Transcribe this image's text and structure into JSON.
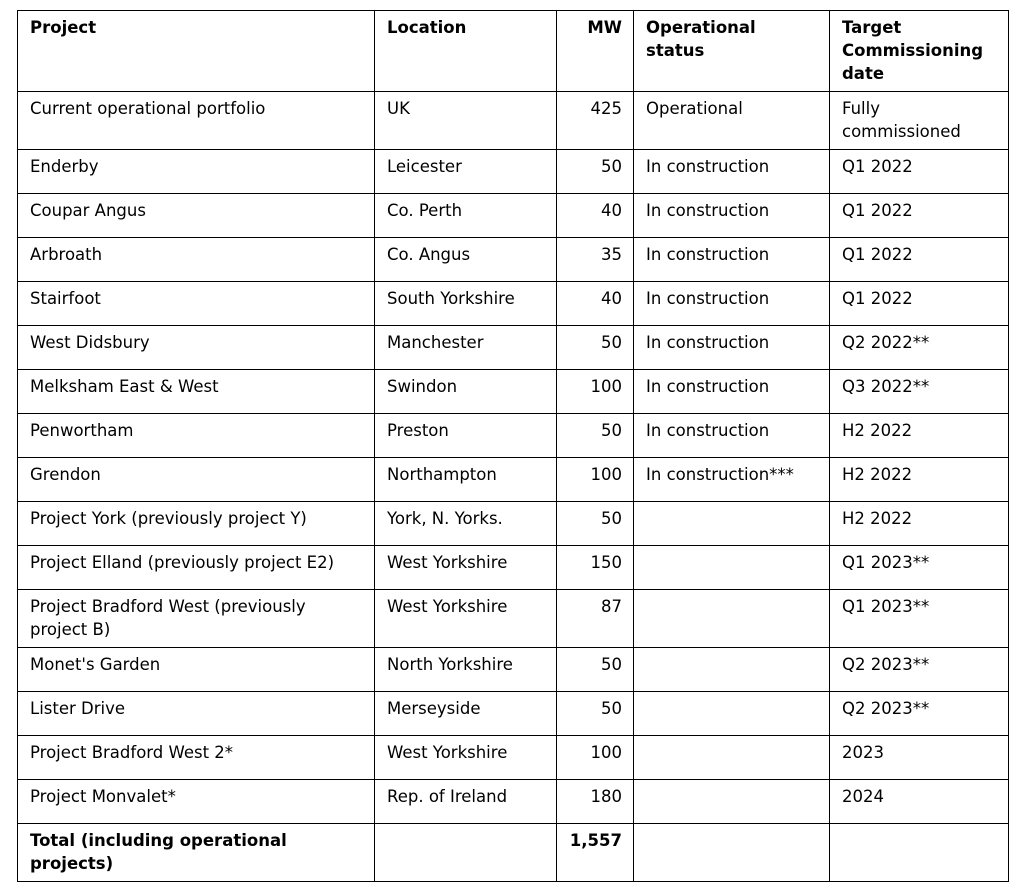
{
  "table": {
    "headers": {
      "project": "Project",
      "location": "Location",
      "mw": "MW",
      "status": "Operational status",
      "target": "Target Commissioning date"
    },
    "rows": [
      {
        "project": "Current operational portfolio",
        "location": "UK",
        "mw": "425",
        "status": "Operational",
        "target": "Fully commissioned"
      },
      {
        "project": "Enderby",
        "location": "Leicester",
        "mw": "50",
        "status": "In construction",
        "target": "Q1 2022"
      },
      {
        "project": "Coupar Angus",
        "location": "Co. Perth",
        "mw": "40",
        "status": "In construction",
        "target": "Q1 2022"
      },
      {
        "project": "Arbroath",
        "location": "Co. Angus",
        "mw": "35",
        "status": "In construction",
        "target": "Q1 2022"
      },
      {
        "project": "Stairfoot",
        "location": "South Yorkshire",
        "mw": "40",
        "status": "In construction",
        "target": "Q1 2022"
      },
      {
        "project": "West Didsbury",
        "location": "Manchester",
        "mw": "50",
        "status": "In construction",
        "target": "Q2 2022**"
      },
      {
        "project": "Melksham East & West",
        "location": "Swindon",
        "mw": "100",
        "status": "In construction",
        "target": "Q3 2022**"
      },
      {
        "project": "Penwortham",
        "location": "Preston",
        "mw": "50",
        "status": "In construction",
        "target": "H2 2022"
      },
      {
        "project": "Grendon",
        "location": "Northampton",
        "mw": "100",
        "status": "In construction***",
        "target": "H2 2022"
      },
      {
        "project": "Project York (previously project Y)",
        "location": "York, N. Yorks.",
        "mw": "50",
        "status": "",
        "target": "H2 2022"
      },
      {
        "project": "Project Elland (previously project E2)",
        "location": "West Yorkshire",
        "mw": "150",
        "status": "",
        "target": "Q1 2023**"
      },
      {
        "project": "Project Bradford West (previously project B)",
        "location": "West Yorkshire",
        "mw": "87",
        "status": "",
        "target": "Q1 2023**"
      },
      {
        "project": "Monet's Garden",
        "location": "North Yorkshire",
        "mw": "50",
        "status": "",
        "target": "Q2 2023**"
      },
      {
        "project": "Lister Drive",
        "location": "Merseyside",
        "mw": "50",
        "status": "",
        "target": "Q2 2023**"
      },
      {
        "project": "Project Bradford West 2*",
        "location": "West Yorkshire",
        "mw": "100",
        "status": "",
        "target": "2023"
      },
      {
        "project": "Project Monvalet*",
        "location": "Rep. of Ireland",
        "mw": "180",
        "status": "",
        "target": "2024"
      }
    ],
    "total": {
      "project": "Total (including operational projects)",
      "location": "",
      "mw": "1,557",
      "status": "",
      "target": ""
    }
  }
}
